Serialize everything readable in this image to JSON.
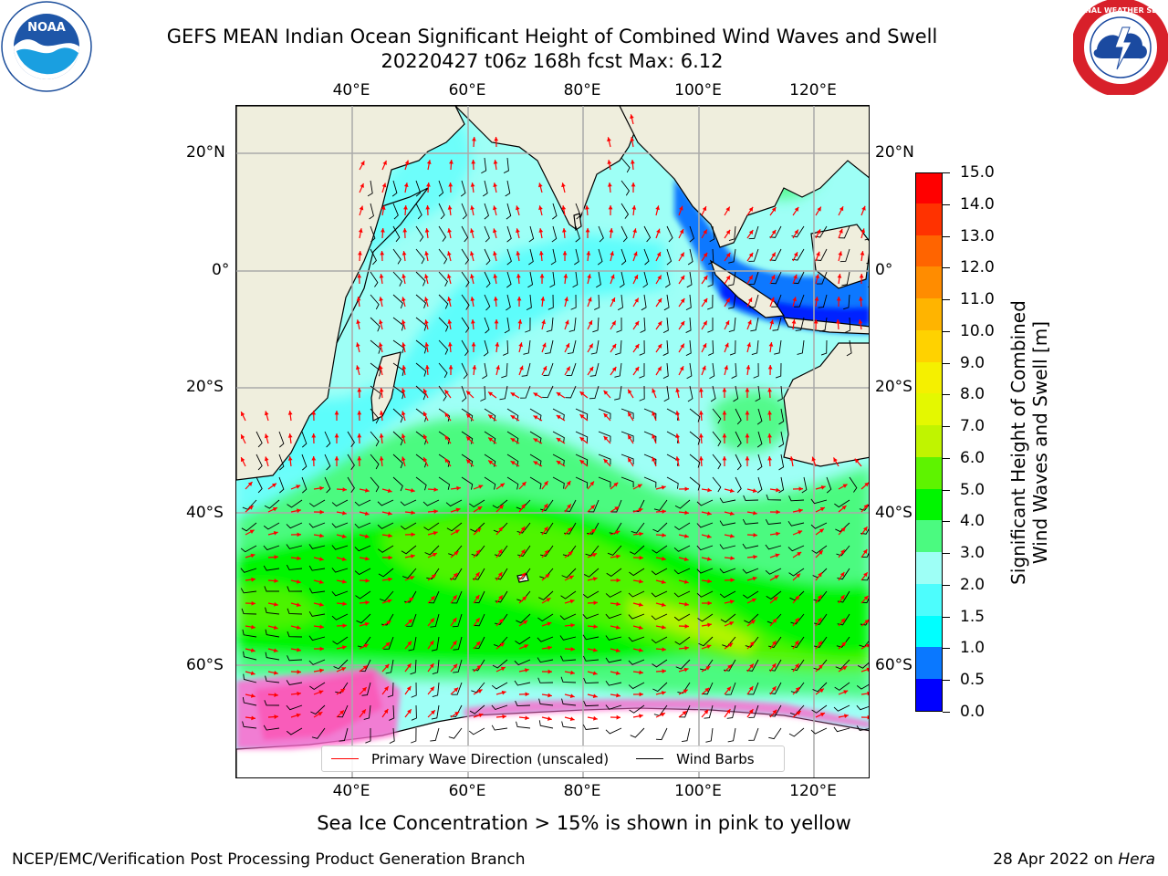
{
  "title_line1": "GEFS MEAN Indian Ocean Significant Height of Combined Wind Waves and Swell",
  "title_line2": "20220427 t06z 168h fcst   Max: 6.12",
  "logos": {
    "left": "noaa-logo",
    "right": "nws-logo",
    "nws_ring_text": "NATIONAL WEATHER SERVICE"
  },
  "axes": {
    "lon_ticks": [
      "40°E",
      "60°E",
      "80°E",
      "100°E",
      "120°E"
    ],
    "lat_ticks": [
      "20°N",
      "0°",
      "20°S",
      "40°S",
      "60°S"
    ]
  },
  "colorbar": {
    "title_line1": "Significant Height of Combined",
    "title_line2": "Wind Waves and Swell [m]",
    "ticks": [
      "0.0",
      "0.5",
      "1.0",
      "1.5",
      "2.0",
      "3.0",
      "4.0",
      "5.0",
      "6.0",
      "7.0",
      "8.0",
      "9.0",
      "10.0",
      "11.0",
      "12.0",
      "13.0",
      "14.0",
      "15.0"
    ],
    "colors": [
      "#0000ff",
      "#0a78ff",
      "#00ffff",
      "#4dfdfd",
      "#9efff6",
      "#4bfa80",
      "#00f500",
      "#5ef300",
      "#c0f400",
      "#e4f800",
      "#f5f000",
      "#ffd200",
      "#ffb400",
      "#ff8c00",
      "#ff6400",
      "#ff3200",
      "#ff0000"
    ]
  },
  "legend": {
    "wave_label": "Primary Wave Direction (unscaled)",
    "wave_color": "#ff0000",
    "wind_label": "Wind Barbs",
    "wind_color": "#000000"
  },
  "caption": "Sea Ice Concentration > 15% is shown in pink to yellow",
  "footer_left": "NCEP/EMC/Verification Post Processing Product Generation Branch",
  "footer_date": "28 Apr 2022 on ",
  "footer_machine": "Hera"
}
